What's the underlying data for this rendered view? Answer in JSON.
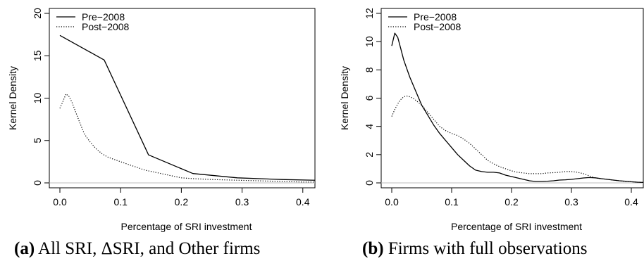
{
  "chart_data": [
    {
      "type": "line",
      "title": "",
      "xlabel": "Percentage of SRI investment",
      "ylabel": "Kernel Density",
      "xlim": [
        0,
        0.42
      ],
      "ylim": [
        0,
        20
      ],
      "xticks": [
        "0.0",
        "0.1",
        "0.2",
        "0.3",
        "0.4"
      ],
      "yticks": [
        "0",
        "5",
        "10",
        "15",
        "20"
      ],
      "grid": false,
      "legend_position": "top-left",
      "baseline_y": 0,
      "series": [
        {
          "name": "Pre−2008",
          "style": "solid",
          "x": [
            0.0,
            0.073,
            0.146,
            0.219,
            0.292,
            0.365,
            0.43
          ],
          "y": [
            17.4,
            14.5,
            3.3,
            1.1,
            0.6,
            0.4,
            0.3
          ]
        },
        {
          "name": "Post−2008",
          "style": "dotted",
          "x": [
            0.0,
            0.005,
            0.01,
            0.015,
            0.02,
            0.03,
            0.04,
            0.05,
            0.06,
            0.07,
            0.08,
            0.1,
            0.12,
            0.14,
            0.16,
            0.18,
            0.2,
            0.22,
            0.25,
            0.3,
            0.35,
            0.4,
            0.43
          ],
          "y": [
            8.8,
            9.6,
            10.5,
            10.2,
            9.5,
            7.6,
            5.8,
            4.8,
            4.0,
            3.4,
            3.0,
            2.5,
            2.0,
            1.5,
            1.2,
            0.9,
            0.6,
            0.5,
            0.4,
            0.3,
            0.2,
            0.1,
            0.1
          ]
        }
      ]
    },
    {
      "type": "line",
      "title": "",
      "xlabel": "Percentage of SRI investment",
      "ylabel": "Kernel Density",
      "xlim": [
        0,
        0.42
      ],
      "ylim": [
        0,
        12
      ],
      "xticks": [
        "0.0",
        "0.1",
        "0.2",
        "0.3",
        "0.4"
      ],
      "yticks": [
        "0",
        "2",
        "4",
        "6",
        "8",
        "10",
        "12"
      ],
      "grid": false,
      "legend_position": "top-left",
      "baseline_y": 0,
      "series": [
        {
          "name": "Pre−2008",
          "style": "solid",
          "x": [
            0.0,
            0.005,
            0.01,
            0.015,
            0.02,
            0.03,
            0.04,
            0.05,
            0.06,
            0.07,
            0.08,
            0.09,
            0.1,
            0.11,
            0.12,
            0.13,
            0.14,
            0.15,
            0.16,
            0.17,
            0.18,
            0.19,
            0.2,
            0.21,
            0.22,
            0.23,
            0.24,
            0.25,
            0.26,
            0.27,
            0.28,
            0.29,
            0.3,
            0.31,
            0.32,
            0.33,
            0.34,
            0.35,
            0.36,
            0.37,
            0.38,
            0.39,
            0.4,
            0.41,
            0.42
          ],
          "y": [
            9.7,
            10.6,
            10.3,
            9.5,
            8.7,
            7.5,
            6.5,
            5.5,
            4.8,
            4.1,
            3.5,
            3.0,
            2.5,
            2.0,
            1.6,
            1.2,
            0.9,
            0.8,
            0.75,
            0.75,
            0.7,
            0.55,
            0.45,
            0.35,
            0.25,
            0.15,
            0.1,
            0.1,
            0.12,
            0.15,
            0.2,
            0.22,
            0.25,
            0.3,
            0.35,
            0.38,
            0.36,
            0.3,
            0.25,
            0.2,
            0.15,
            0.12,
            0.08,
            0.05,
            0.03
          ]
        },
        {
          "name": "Post−2008",
          "style": "dotted",
          "x": [
            0.0,
            0.005,
            0.01,
            0.015,
            0.02,
            0.025,
            0.03,
            0.035,
            0.04,
            0.05,
            0.06,
            0.07,
            0.08,
            0.09,
            0.1,
            0.11,
            0.12,
            0.13,
            0.14,
            0.15,
            0.16,
            0.17,
            0.18,
            0.19,
            0.2,
            0.21,
            0.22,
            0.23,
            0.24,
            0.25,
            0.26,
            0.27,
            0.28,
            0.29,
            0.3,
            0.31,
            0.32,
            0.33,
            0.34,
            0.35,
            0.36,
            0.37,
            0.38,
            0.39,
            0.4,
            0.41,
            0.42
          ],
          "y": [
            4.7,
            5.2,
            5.6,
            5.9,
            6.1,
            6.15,
            6.1,
            6.0,
            5.85,
            5.5,
            5.0,
            4.5,
            4.0,
            3.7,
            3.5,
            3.35,
            3.1,
            2.8,
            2.4,
            2.0,
            1.6,
            1.35,
            1.15,
            1.0,
            0.85,
            0.75,
            0.7,
            0.65,
            0.65,
            0.65,
            0.7,
            0.72,
            0.75,
            0.8,
            0.8,
            0.75,
            0.65,
            0.5,
            0.35,
            0.3,
            0.25,
            0.2,
            0.15,
            0.1,
            0.08,
            0.05,
            0.03
          ]
        }
      ]
    }
  ],
  "captions": [
    {
      "label": "(a)",
      "text": "All SRI, ΔSRI, and Other firms"
    },
    {
      "label": "(b)",
      "text": "Firms with full observations"
    }
  ]
}
